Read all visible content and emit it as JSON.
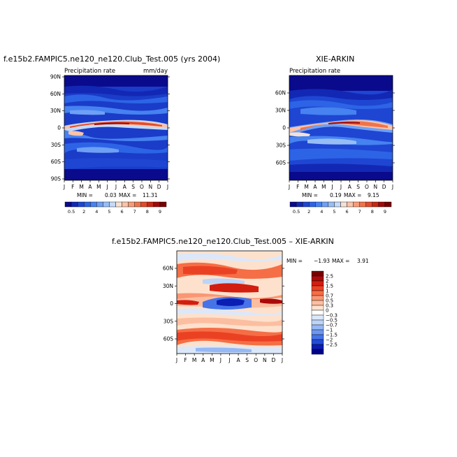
{
  "panels": [
    {
      "id": "model",
      "title": "f.e15b2.FAMPIC5.ne120_ne120.Club_Test.005 (yrs 2004)",
      "subtitle_left": "Precipitation rate",
      "subtitle_right": "mm/day",
      "stats": {
        "min_label": "MIN =",
        "min": "0.03",
        "max_label": "MAX =",
        "max": "11.31"
      },
      "ytick_labels": [
        "90N",
        "60N",
        "30N",
        "0",
        "30S",
        "60S",
        "90S"
      ],
      "xtick_labels": [
        "J",
        "F",
        "M",
        "A",
        "M",
        "J",
        "J",
        "A",
        "S",
        "O",
        "N",
        "D",
        "J"
      ]
    },
    {
      "id": "obs",
      "title": "XIE-ARKIN",
      "subtitle_left": "Precipitation rate",
      "subtitle_right": "",
      "stats": {
        "min_label": "MIN =",
        "min": "0.19",
        "max_label": "MAX =",
        "max": "9.15"
      },
      "ytick_labels": [
        "60N",
        "30N",
        "0",
        "30S",
        "60S"
      ],
      "xtick_labels": [
        "J",
        "F",
        "M",
        "A",
        "M",
        "J",
        "J",
        "A",
        "S",
        "O",
        "N",
        "D",
        "J"
      ]
    },
    {
      "id": "diff",
      "title": "f.e15b2.FAMPIC5.ne120_ne120.Club_Test.005 – XIE-ARKIN",
      "stats": {
        "min_label": "MIN =",
        "min": "−1.93",
        "max_label": "MAX =",
        "max": "3.91"
      },
      "ytick_labels": [
        "60N",
        "30N",
        "0",
        "30S",
        "60S"
      ],
      "xtick_labels": [
        "J",
        "F",
        "M",
        "A",
        "M",
        "J",
        "J",
        "A",
        "S",
        "O",
        "N",
        "D",
        "J"
      ]
    }
  ],
  "colorbar_abs": {
    "labels": [
      "0.5",
      "2",
      "4",
      "5",
      "6",
      "7",
      "8",
      "9"
    ],
    "colors": [
      "#0a0a8c",
      "#1228b4",
      "#1e46d2",
      "#2d64e6",
      "#4682f0",
      "#6ea0f5",
      "#96bef5",
      "#c3daf8",
      "#f5e1d2",
      "#fac3aa",
      "#fa9b78",
      "#f0734b",
      "#e14b2d",
      "#c82814",
      "#a00a0a",
      "#780000"
    ]
  },
  "colorbar_diff": {
    "labels": [
      "2.5",
      "2",
      "1.5",
      "1",
      "0.7",
      "0.5",
      "0.3",
      "0",
      "−0.3",
      "−0.5",
      "−0.7",
      "−1",
      "−1.5",
      "−2",
      "−2.5"
    ],
    "colors": [
      "#780000",
      "#aa0a0a",
      "#d21e0f",
      "#eb4123",
      "#f56e46",
      "#fa9673",
      "#fcbea0",
      "#fde1cd",
      "#ffffff",
      "#dce8fa",
      "#bcd4f8",
      "#96b8f5",
      "#6e96f0",
      "#4673e8",
      "#234bd7",
      "#0a1eb4",
      "#00008c"
    ]
  },
  "chart_data": [
    {
      "type": "heatmap",
      "title": "f.e15b2.FAMPIC5.ne120_ne120.Club_Test.005 (yrs 2004)",
      "x": [
        "J",
        "F",
        "M",
        "A",
        "M",
        "J",
        "J",
        "A",
        "S",
        "O",
        "N",
        "D",
        "J"
      ],
      "y": [
        "90N",
        "60N",
        "30N",
        "0",
        "30S",
        "60S",
        "90S"
      ],
      "ylim": [
        -90,
        90
      ],
      "itcz_peak_latitude_by_month": [
        2,
        3,
        4,
        6,
        7,
        8,
        9,
        9,
        8,
        7,
        6,
        4,
        2
      ],
      "min": 0.03,
      "max": 11.31,
      "units": "mm/day"
    },
    {
      "type": "heatmap",
      "title": "XIE-ARKIN",
      "x": [
        "J",
        "F",
        "M",
        "A",
        "M",
        "J",
        "J",
        "A",
        "S",
        "O",
        "N",
        "D",
        "J"
      ],
      "y": [
        "60N",
        "30N",
        "0",
        "30S",
        "60S"
      ],
      "itcz_peak_latitude_by_month": [
        0,
        1,
        2,
        4,
        6,
        8,
        9,
        9,
        8,
        6,
        4,
        2,
        0
      ],
      "min": 0.19,
      "max": 9.15
    },
    {
      "type": "heatmap",
      "title": "f.e15b2.FAMPIC5.ne120_ne120.Club_Test.005 – XIE-ARKIN",
      "x": [
        "J",
        "F",
        "M",
        "A",
        "M",
        "J",
        "J",
        "A",
        "S",
        "O",
        "N",
        "D",
        "J"
      ],
      "y": [
        "60N",
        "30N",
        "0",
        "30S",
        "60S"
      ],
      "min": -1.93,
      "max": 3.91
    }
  ]
}
